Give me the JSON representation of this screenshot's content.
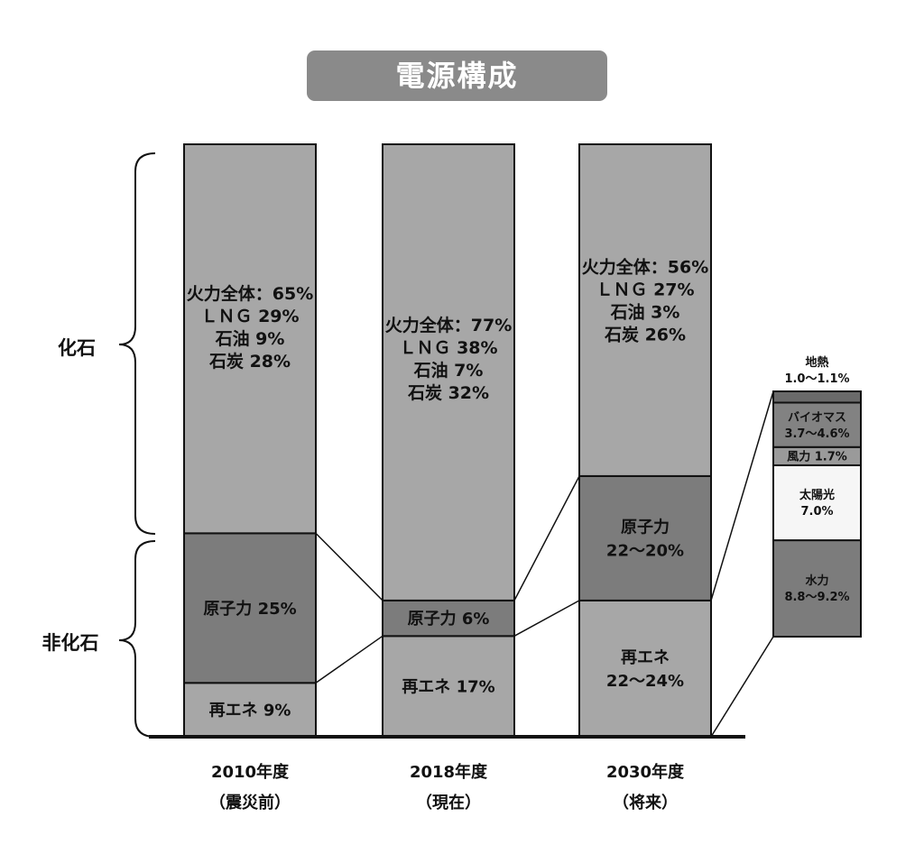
{
  "title": "電源構成",
  "groups": {
    "fossil": "化石",
    "non_fossil": "非化石"
  },
  "colors": {
    "fossil": "#a7a7a7",
    "nuclear": "#7c7c7c",
    "renew": "#a7a7a7",
    "geo": "#6a6a6a",
    "bio": "#828282",
    "wind": "#9a9a9a",
    "solar": "#f6f6f6",
    "hydro": "#7c7c7c",
    "axis": "#111111"
  },
  "chart_data": {
    "type": "bar",
    "stacked": true,
    "ylim": [
      0,
      100
    ],
    "categories": [
      {
        "year": "2010年度",
        "note": "（震災前）"
      },
      {
        "year": "2018年度",
        "note": "（現在）"
      },
      {
        "year": "2030年度",
        "note": "（将来）"
      }
    ],
    "bars": [
      {
        "segments": [
          {
            "key": "renew",
            "value": 9,
            "lines": [
              "再エネ 9%"
            ]
          },
          {
            "key": "nuclear",
            "value": 25,
            "lines": [
              "原子力 25%"
            ]
          },
          {
            "key": "fossil",
            "value": 65,
            "lines": [
              "火力全体：65%",
              "ＬＮＧ 29%",
              "石油 9%",
              "石炭 28%"
            ]
          }
        ]
      },
      {
        "segments": [
          {
            "key": "renew",
            "value": 17,
            "lines": [
              "再エネ 17%"
            ]
          },
          {
            "key": "nuclear",
            "value": 6,
            "lines": [
              "原子力 6%"
            ]
          },
          {
            "key": "fossil",
            "value": 77,
            "lines": [
              "火力全体：77%",
              "ＬＮＧ 38%",
              "石油 7%",
              "石炭 32%"
            ]
          }
        ]
      },
      {
        "segments": [
          {
            "key": "renew",
            "value": 23,
            "lines": [
              "再エネ",
              "22～24%"
            ]
          },
          {
            "key": "nuclear",
            "value": 21,
            "lines": [
              "原子力",
              "22～20%"
            ]
          },
          {
            "key": "fossil",
            "value": 56,
            "lines": [
              "火力全体：56%",
              "ＬＮＧ 27%",
              "石油 3%",
              "石炭 26%"
            ]
          }
        ]
      }
    ],
    "breakdown": {
      "of": "再エネ 22～24%",
      "segments": [
        {
          "key": "hydro",
          "value": 9.0,
          "lines": [
            "水力",
            "8.8～9.2%"
          ]
        },
        {
          "key": "solar",
          "value": 7.0,
          "lines": [
            "太陽光",
            "7.0%"
          ]
        },
        {
          "key": "wind",
          "value": 1.7,
          "lines": [
            "風力 1.7%"
          ]
        },
        {
          "key": "bio",
          "value": 4.15,
          "lines": [
            "バイオマス",
            "3.7～4.6%"
          ]
        },
        {
          "key": "geo",
          "value": 1.05,
          "lines": []
        }
      ],
      "geo_label": [
        "地熱",
        "1.0～1.1%"
      ]
    }
  }
}
